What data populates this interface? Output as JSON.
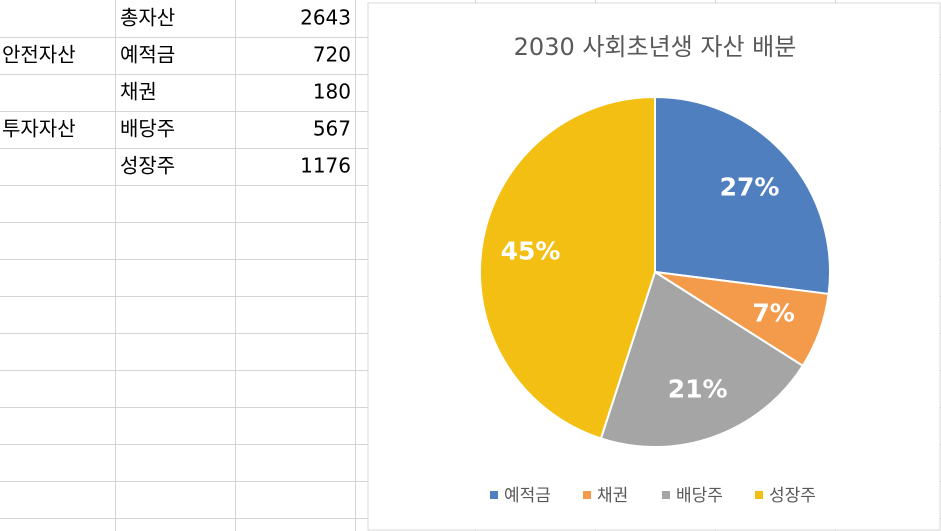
{
  "table": {
    "rows": [
      {
        "label": "총자산",
        "amount": 2643
      },
      {
        "group": "안전자산",
        "label": "예적금",
        "amount": 720
      },
      {
        "label": "채권",
        "amount": 180
      },
      {
        "group": "투자자산",
        "label": "배당주",
        "amount": 567
      },
      {
        "label": "성장주",
        "amount": 1176
      }
    ]
  },
  "chart_data": {
    "type": "pie",
    "title": "2030 사회초년생 자산 배분",
    "categories": [
      "예적금",
      "채권",
      "배당주",
      "성장주"
    ],
    "values": [
      27,
      7,
      21,
      45
    ],
    "value_labels": [
      "27%",
      "7%",
      "21%",
      "45%"
    ],
    "colors": [
      "#4f7fbf",
      "#f39b4a",
      "#a5a5a5",
      "#f2bf12"
    ],
    "legend": "bottom"
  }
}
